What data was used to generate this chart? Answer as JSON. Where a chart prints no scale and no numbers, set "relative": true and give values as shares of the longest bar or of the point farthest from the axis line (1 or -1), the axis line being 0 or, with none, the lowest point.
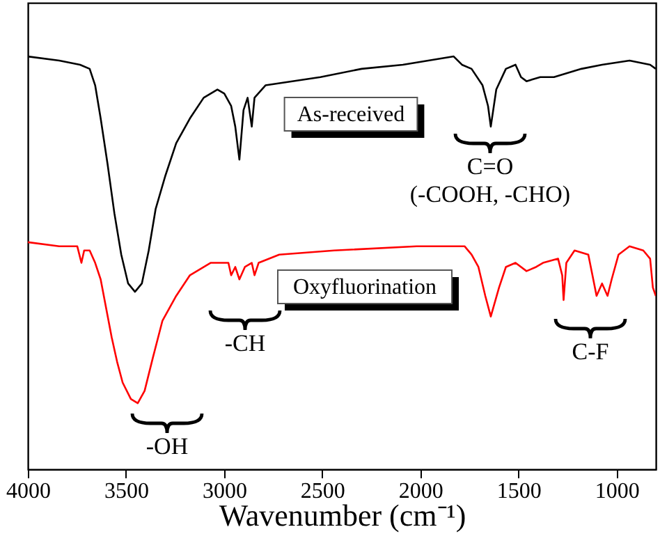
{
  "chart_data": {
    "type": "line",
    "relative": true,
    "xlabel": "Wavenumber (cm⁻¹)",
    "xlim": [
      4000,
      800
    ],
    "xticks": [
      4000,
      3500,
      3000,
      2500,
      2000,
      1500,
      1000
    ],
    "grid": false,
    "legend": false,
    "line_style": "solid",
    "marker": "none",
    "tick_labels": "x",
    "series": [
      {
        "name": "As-received",
        "color": "#000000",
        "x": [
          4000,
          3840,
          3734,
          3685,
          3657,
          3629,
          3594,
          3559,
          3524,
          3489,
          3454,
          3419,
          3384,
          3349,
          3300,
          3244,
          3174,
          3104,
          3034,
          2999,
          2964,
          2943,
          2922,
          2901,
          2880,
          2859,
          2845,
          2789,
          2509,
          2299,
          2089,
          1830,
          1788,
          1739,
          1683,
          1655,
          1641,
          1613,
          1564,
          1515,
          1487,
          1459,
          1389,
          1319,
          1249,
          1179,
          1074,
          934,
          829,
          800
        ],
        "values": [
          1.0,
          0.99,
          0.98,
          0.97,
          0.93,
          0.85,
          0.74,
          0.62,
          0.52,
          0.45,
          0.43,
          0.45,
          0.53,
          0.63,
          0.71,
          0.79,
          0.85,
          0.9,
          0.92,
          0.91,
          0.88,
          0.83,
          0.75,
          0.87,
          0.9,
          0.83,
          0.9,
          0.93,
          0.95,
          0.97,
          0.98,
          1.0,
          0.98,
          0.97,
          0.93,
          0.88,
          0.83,
          0.92,
          0.97,
          0.98,
          0.95,
          0.94,
          0.95,
          0.95,
          0.96,
          0.97,
          0.98,
          0.99,
          0.98,
          0.97
        ]
      },
      {
        "name": "Oxyfluorination",
        "color": "#ff0000",
        "x": [
          4000,
          3840,
          3748,
          3727,
          3713,
          3685,
          3657,
          3629,
          3601,
          3573,
          3545,
          3517,
          3475,
          3440,
          3405,
          3363,
          3314,
          3244,
          3174,
          3069,
          2999,
          2978,
          2964,
          2943,
          2922,
          2894,
          2859,
          2845,
          2824,
          2719,
          2439,
          2019,
          1774,
          1739,
          1704,
          1669,
          1641,
          1599,
          1564,
          1515,
          1459,
          1410,
          1375,
          1298,
          1277,
          1270,
          1256,
          1214,
          1144,
          1123,
          1102,
          1074,
          1046,
          1025,
          990,
          934,
          864,
          829,
          815,
          800
        ],
        "values": [
          0.55,
          0.54,
          0.54,
          0.5,
          0.53,
          0.53,
          0.5,
          0.46,
          0.39,
          0.32,
          0.26,
          0.21,
          0.17,
          0.16,
          0.19,
          0.27,
          0.36,
          0.42,
          0.47,
          0.5,
          0.5,
          0.5,
          0.47,
          0.49,
          0.46,
          0.49,
          0.5,
          0.47,
          0.5,
          0.52,
          0.53,
          0.54,
          0.54,
          0.52,
          0.49,
          0.42,
          0.37,
          0.44,
          0.49,
          0.5,
          0.48,
          0.49,
          0.5,
          0.51,
          0.47,
          0.41,
          0.5,
          0.53,
          0.52,
          0.47,
          0.42,
          0.45,
          0.42,
          0.46,
          0.52,
          0.54,
          0.53,
          0.51,
          0.44,
          0.42
        ]
      }
    ],
    "annotations": [
      "-OH",
      "-CH",
      "C=O\n(-COOH, -CHO)",
      "C-F"
    ]
  }
}
